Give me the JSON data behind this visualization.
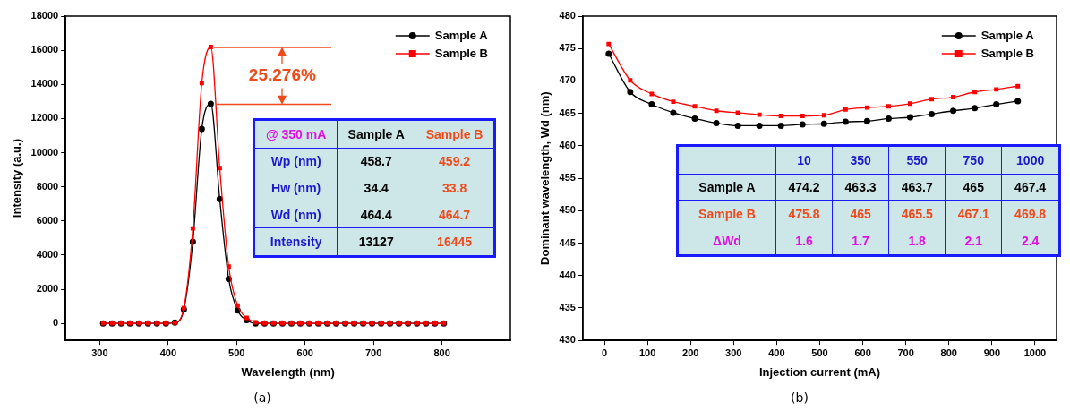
{
  "chart_data": [
    {
      "type": "line",
      "title": "(a)",
      "xlabel": "Wavelength (nm)",
      "ylabel": "Intensity (a.u.)",
      "xlim": [
        250,
        900
      ],
      "ylim": [
        -1000,
        18000
      ],
      "xticks": [
        300,
        400,
        500,
        600,
        700,
        800
      ],
      "yticks": [
        0,
        2000,
        4000,
        6000,
        8000,
        10000,
        12000,
        14000,
        16000,
        18000
      ],
      "legend": "top right",
      "x": [
        305,
        318.1,
        331.2,
        344.3,
        357.4,
        370.5,
        383.6,
        396.7,
        409.8,
        422.9,
        436,
        449.1,
        462.2,
        475.3,
        488.4,
        501.5,
        514.6,
        527.7,
        540.8,
        553.9,
        567,
        580.1,
        593.2,
        606.3,
        619.4,
        632.5,
        645.6,
        658.7,
        671.8,
        684.9,
        698,
        711.1,
        724.2,
        737.3,
        750.4,
        763.5,
        776.6,
        789.7,
        802.8
      ],
      "series": [
        {
          "name": "Sample A",
          "color": "#000000",
          "marker": "circle",
          "values": [
            0,
            0,
            0,
            0,
            0,
            0,
            0,
            0,
            40,
            820,
            4780,
            11390,
            12860,
            7280,
            2610,
            760,
            190,
            0,
            0,
            0,
            0,
            0,
            0,
            0,
            0,
            0,
            0,
            0,
            0,
            0,
            0,
            0,
            0,
            0,
            0,
            0,
            0,
            0,
            0
          ]
        },
        {
          "name": "Sample B",
          "color": "#ff0000",
          "marker": "square",
          "values": [
            0,
            0,
            0,
            0,
            0,
            0,
            0,
            0,
            40,
            900,
            5560,
            14080,
            16190,
            9100,
            3330,
            1050,
            320,
            60,
            0,
            0,
            0,
            0,
            0,
            0,
            0,
            0,
            0,
            0,
            0,
            0,
            0,
            0,
            0,
            0,
            0,
            0,
            0,
            0,
            0
          ]
        }
      ],
      "annotations": [
        "25.276%",
        "@ 350 mA",
        "Sample A",
        "Sample B",
        "Wp (nm)",
        "458.7",
        "459.2",
        "Hw (nm)",
        "34.4",
        "33.8",
        "Wd (nm)",
        "464.4",
        "464.7",
        "Intensity",
        "13127",
        "16445"
      ]
    },
    {
      "type": "line",
      "title": "(b)",
      "xlabel": "Injection current (mA)",
      "ylabel": "Dominant wavelength, Wd (nm)",
      "xlim": [
        -50,
        1050
      ],
      "ylim": [
        430,
        480
      ],
      "xticks": [
        0,
        100,
        200,
        300,
        400,
        500,
        600,
        700,
        800,
        900,
        1000
      ],
      "yticks": [
        430,
        435,
        440,
        445,
        450,
        455,
        460,
        465,
        470,
        475,
        480
      ],
      "legend": "top right",
      "x": [
        10,
        60,
        110,
        160,
        210,
        260,
        310,
        360,
        410,
        460,
        510,
        560,
        610,
        660,
        710,
        760,
        810,
        860,
        910,
        960
      ],
      "series": [
        {
          "name": "Sample A",
          "color": "#000000",
          "marker": "circle",
          "values": [
            474.2,
            468.3,
            466.4,
            465.1,
            464.2,
            463.5,
            463.1,
            463.1,
            463.1,
            463.3,
            463.4,
            463.7,
            463.8,
            464.2,
            464.4,
            464.9,
            465.4,
            465.8,
            466.4,
            466.9
          ]
        },
        {
          "name": "Sample B",
          "color": "#ff0000",
          "marker": "square",
          "values": [
            475.7,
            470.1,
            468,
            466.8,
            466.1,
            465.4,
            465.1,
            464.8,
            464.6,
            464.6,
            464.7,
            465.6,
            465.9,
            466.1,
            466.5,
            467.2,
            467.5,
            468.3,
            468.7,
            469.2
          ]
        }
      ],
      "annotations": [
        "10",
        "350",
        "550",
        "750",
        "1000",
        "Sample A",
        "474.2",
        "463.3",
        "463.7",
        "465",
        "467.4",
        "Sample B",
        "475.8",
        "465",
        "465.5",
        "467.1",
        "469.8",
        "ΔWd",
        "1.6",
        "1.7",
        "1.8",
        "2.1",
        "2.4"
      ]
    }
  ]
}
